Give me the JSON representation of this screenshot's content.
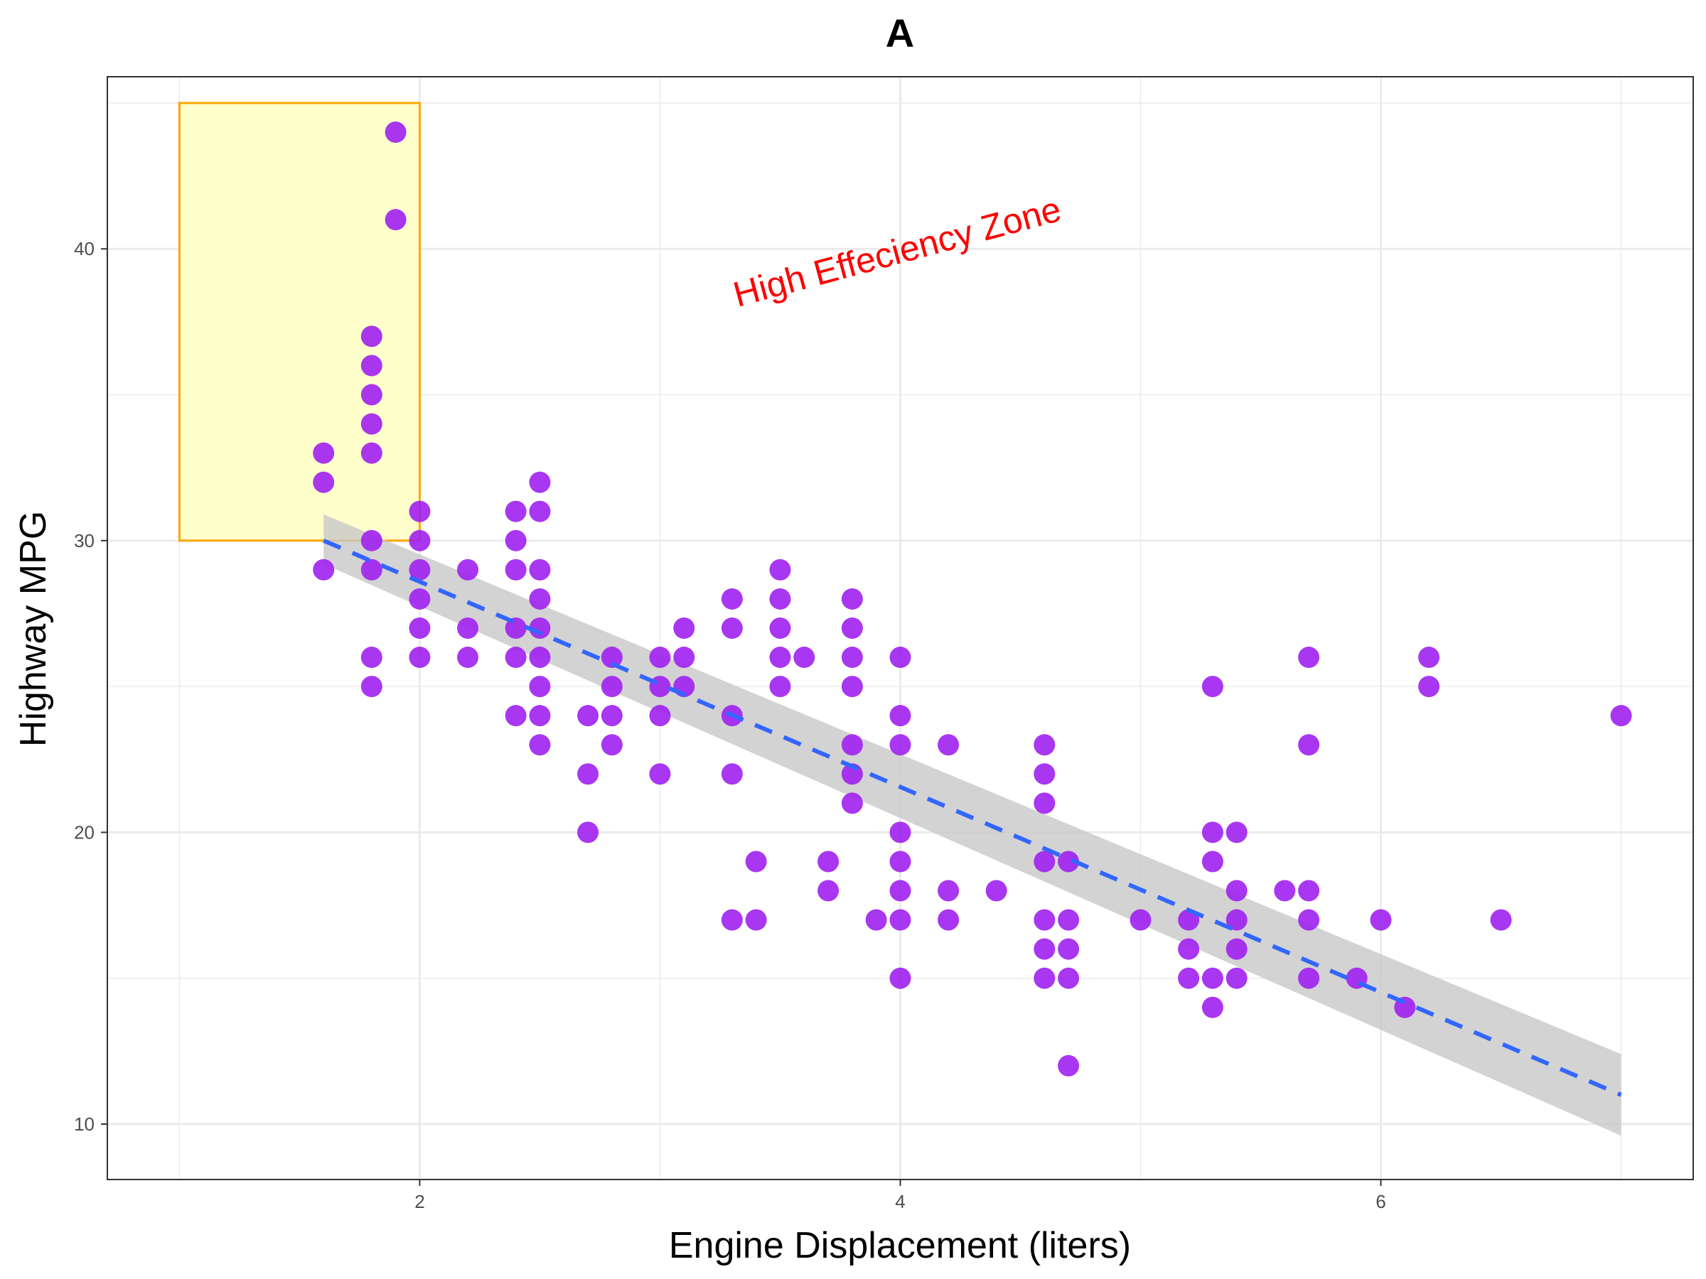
{
  "chart_data": {
    "type": "scatter",
    "title": "A",
    "xlabel": "Engine Displacement (liters)",
    "ylabel": "Highway MPG",
    "xlim": [
      0.7,
      7.3
    ],
    "ylim": [
      8.1,
      45.9
    ],
    "xticks": [
      2,
      4,
      6
    ],
    "yticks": [
      10,
      20,
      30,
      40
    ],
    "x_minor_grid": [
      1,
      3,
      5,
      7
    ],
    "y_minor_grid": [
      15,
      25,
      35,
      45
    ],
    "grid": true,
    "point_color": "#a020f0",
    "points": [
      [
        1.6,
        33
      ],
      [
        1.6,
        32
      ],
      [
        1.6,
        29
      ],
      [
        1.8,
        37
      ],
      [
        1.8,
        36
      ],
      [
        1.8,
        35
      ],
      [
        1.8,
        34
      ],
      [
        1.8,
        33
      ],
      [
        1.8,
        30
      ],
      [
        1.8,
        29
      ],
      [
        1.8,
        26
      ],
      [
        1.8,
        25
      ],
      [
        1.9,
        44
      ],
      [
        1.9,
        41
      ],
      [
        2.0,
        31
      ],
      [
        2.0,
        30
      ],
      [
        2.0,
        29
      ],
      [
        2.0,
        28
      ],
      [
        2.0,
        27
      ],
      [
        2.0,
        26
      ],
      [
        2.2,
        29
      ],
      [
        2.2,
        27
      ],
      [
        2.2,
        26
      ],
      [
        2.4,
        31
      ],
      [
        2.4,
        30
      ],
      [
        2.4,
        29
      ],
      [
        2.4,
        27
      ],
      [
        2.4,
        26
      ],
      [
        2.4,
        24
      ],
      [
        2.5,
        32
      ],
      [
        2.5,
        31
      ],
      [
        2.5,
        29
      ],
      [
        2.5,
        28
      ],
      [
        2.5,
        27
      ],
      [
        2.5,
        26
      ],
      [
        2.5,
        25
      ],
      [
        2.5,
        24
      ],
      [
        2.5,
        23
      ],
      [
        2.7,
        24
      ],
      [
        2.7,
        22
      ],
      [
        2.7,
        20
      ],
      [
        2.8,
        26
      ],
      [
        2.8,
        25
      ],
      [
        2.8,
        24
      ],
      [
        2.8,
        23
      ],
      [
        3.0,
        26
      ],
      [
        3.0,
        25
      ],
      [
        3.0,
        24
      ],
      [
        3.0,
        22
      ],
      [
        3.1,
        27
      ],
      [
        3.1,
        26
      ],
      [
        3.1,
        25
      ],
      [
        3.3,
        28
      ],
      [
        3.3,
        27
      ],
      [
        3.3,
        24
      ],
      [
        3.3,
        22
      ],
      [
        3.3,
        17
      ],
      [
        3.4,
        19
      ],
      [
        3.4,
        17
      ],
      [
        3.5,
        29
      ],
      [
        3.5,
        28
      ],
      [
        3.5,
        27
      ],
      [
        3.5,
        26
      ],
      [
        3.5,
        25
      ],
      [
        3.6,
        26
      ],
      [
        3.7,
        19
      ],
      [
        3.7,
        18
      ],
      [
        3.8,
        28
      ],
      [
        3.8,
        27
      ],
      [
        3.8,
        26
      ],
      [
        3.8,
        25
      ],
      [
        3.8,
        23
      ],
      [
        3.8,
        22
      ],
      [
        3.8,
        21
      ],
      [
        3.9,
        17
      ],
      [
        4.0,
        26
      ],
      [
        4.0,
        24
      ],
      [
        4.0,
        23
      ],
      [
        4.0,
        20
      ],
      [
        4.0,
        19
      ],
      [
        4.0,
        18
      ],
      [
        4.0,
        17
      ],
      [
        4.0,
        15
      ],
      [
        4.2,
        23
      ],
      [
        4.2,
        18
      ],
      [
        4.2,
        17
      ],
      [
        4.4,
        18
      ],
      [
        4.6,
        23
      ],
      [
        4.6,
        22
      ],
      [
        4.6,
        21
      ],
      [
        4.6,
        19
      ],
      [
        4.6,
        17
      ],
      [
        4.6,
        16
      ],
      [
        4.6,
        15
      ],
      [
        4.7,
        19
      ],
      [
        4.7,
        17
      ],
      [
        4.7,
        16
      ],
      [
        4.7,
        15
      ],
      [
        4.7,
        12
      ],
      [
        5.0,
        17
      ],
      [
        5.2,
        17
      ],
      [
        5.2,
        16
      ],
      [
        5.2,
        15
      ],
      [
        5.3,
        25
      ],
      [
        5.3,
        20
      ],
      [
        5.3,
        19
      ],
      [
        5.3,
        15
      ],
      [
        5.3,
        14
      ],
      [
        5.4,
        20
      ],
      [
        5.4,
        18
      ],
      [
        5.4,
        17
      ],
      [
        5.4,
        16
      ],
      [
        5.4,
        15
      ],
      [
        5.6,
        18
      ],
      [
        5.7,
        26
      ],
      [
        5.7,
        23
      ],
      [
        5.7,
        18
      ],
      [
        5.7,
        17
      ],
      [
        5.7,
        15
      ],
      [
        5.9,
        15
      ],
      [
        6.0,
        17
      ],
      [
        6.1,
        14
      ],
      [
        6.2,
        26
      ],
      [
        6.2,
        25
      ],
      [
        6.5,
        17
      ],
      [
        7.0,
        24
      ]
    ],
    "trend_line": {
      "x": [
        1.6,
        7.0
      ],
      "y": [
        30.0,
        11.0
      ],
      "ci_low": [
        29.2,
        9.6
      ],
      "ci_high": [
        30.9,
        12.4
      ],
      "line_color": "#3366ff",
      "ci_color": "#c8c8c8"
    },
    "highlight_zone": {
      "xmin": 1.0,
      "xmax": 2.0,
      "ymin": 30,
      "ymax": 45,
      "fill": "#ffffcc",
      "stroke": "#ffa500"
    },
    "annotation": {
      "text": "High Effeciency Zone",
      "x": 4.0,
      "y": 39.5,
      "color": "#ff0000",
      "angle": 15
    }
  }
}
